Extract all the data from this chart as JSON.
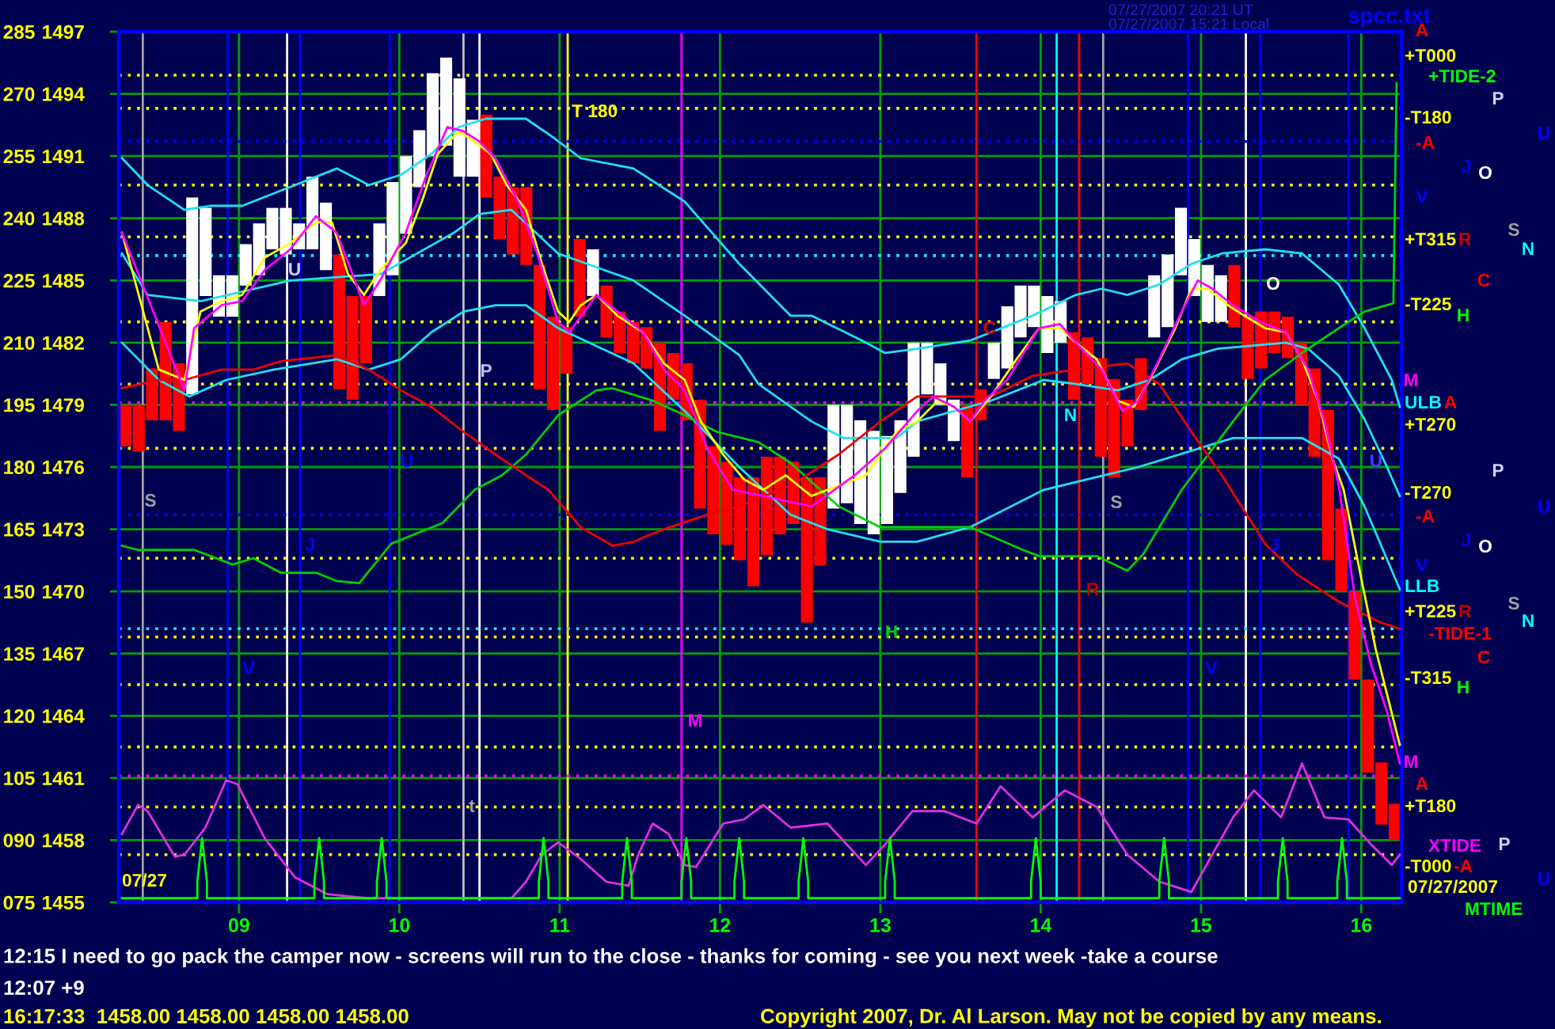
{
  "chart_data": {
    "type": "bar",
    "xlim": [
      8.25,
      16.25
    ],
    "ylim": [
      1455,
      1497
    ],
    "y2lim": [
      75,
      285
    ],
    "xticks": [
      {
        "value": 9,
        "label": "09"
      },
      10,
      11,
      12,
      13,
      14,
      15,
      16
    ],
    "yticks": [
      1455,
      1458,
      1461,
      1464,
      1467,
      1470,
      1473,
      1476,
      1479,
      1482,
      1485,
      1488,
      1491,
      1494,
      1497
    ],
    "y2ticks": [
      {
        "value": 75,
        "label": "075"
      },
      {
        "value": 90,
        "label": "090"
      },
      105,
      120,
      135,
      150,
      165,
      180,
      195,
      210,
      225,
      240,
      255,
      270,
      285
    ],
    "grid": true,
    "series": [
      {
        "x": [
          8.292,
          8.375,
          8.458,
          8.542,
          8.625,
          8.708,
          8.792,
          8.875,
          8.958,
          9.042,
          9.125,
          9.208,
          9.292,
          9.375,
          9.458,
          9.542,
          9.625,
          9.708,
          9.792,
          9.875,
          9.958,
          10.042,
          10.125,
          10.208,
          10.292,
          10.375,
          10.458,
          10.542,
          10.625,
          10.708,
          10.792,
          10.875,
          10.958,
          11.042,
          11.125,
          11.208,
          11.292,
          11.375,
          11.458,
          11.542,
          11.625,
          11.708,
          11.792,
          11.875,
          11.958,
          12.042,
          12.125,
          12.208,
          12.292,
          12.375,
          12.458,
          12.542,
          12.625,
          12.708,
          12.792,
          12.875,
          12.958,
          13.042,
          13.125,
          13.208,
          13.292,
          13.375,
          13.458,
          13.542,
          13.625,
          13.708,
          13.792,
          13.875,
          13.958,
          14.042,
          14.125,
          14.208,
          14.292,
          14.375,
          14.458,
          14.542,
          14.625,
          14.708,
          14.792,
          14.875,
          14.958,
          15.042,
          15.125,
          15.208,
          15.292,
          15.375,
          15.458,
          15.542,
          15.625,
          15.708,
          15.792,
          15.875,
          15.958,
          16.042,
          16.125,
          16.208
        ],
        "base": [
          1477,
          1476.75,
          1478.25,
          1478.25,
          1477.75,
          1479.5,
          1484.25,
          1483.25,
          1483.25,
          1484.75,
          1485.25,
          1486.5,
          1486.25,
          1486.5,
          1486.5,
          1485.5,
          1479.75,
          1479.25,
          1481,
          1484.25,
          1485.25,
          1487.25,
          1489.5,
          1491,
          1491.5,
          1490,
          1490,
          1489,
          1487,
          1486.25,
          1485.75,
          1479.75,
          1478.75,
          1480.5,
          1483.25,
          1484.25,
          1482.25,
          1481.5,
          1481,
          1480.75,
          1477.75,
          1479.25,
          1478.25,
          1474,
          1472.75,
          1472.25,
          1471.5,
          1470.25,
          1471.75,
          1472.75,
          1473.25,
          1468.5,
          1471.25,
          1474,
          1474.25,
          1473.25,
          1472.75,
          1473.25,
          1474.75,
          1476.5,
          1479.5,
          1479,
          1477.25,
          1475.5,
          1478.25,
          1480.25,
          1480.75,
          1482.25,
          1482.75,
          1481.5,
          1482,
          1479.25,
          1480,
          1476.5,
          1475.5,
          1477,
          1478.75,
          1482.25,
          1482.75,
          1485.25,
          1484.25,
          1483,
          1483,
          1482.75,
          1480.25,
          1480.75,
          1481.5,
          1481.25,
          1479,
          1476.5,
          1471.5,
          1470,
          1465.75,
          1461.25,
          1458.75,
          1458
        ],
        "values": [
          2,
          2.25,
          2.5,
          4.75,
          3.25,
          9.5,
          4.25,
          2,
          2,
          2,
          2.5,
          2,
          2.25,
          1.25,
          3.5,
          3.25,
          6.5,
          5,
          3.25,
          3.5,
          4.5,
          3.75,
          2.75,
          4,
          4.25,
          4.75,
          2.75,
          4,
          3,
          3.25,
          3.75,
          6,
          4.5,
          2.25,
          3.75,
          2.25,
          2.5,
          2,
          2,
          2,
          4.25,
          2.25,
          2.75,
          5.25,
          4.25,
          4,
          4,
          5.25,
          4.75,
          3.75,
          3,
          7,
          4.25,
          5,
          4.75,
          5,
          5,
          4.25,
          3.5,
          5.5,
          2.5,
          2,
          2,
          3.5,
          1.5,
          1.75,
          3,
          2.5,
          2,
          2.75,
          2,
          3.25,
          2.25,
          4.75,
          4.75,
          2.25,
          2.5,
          3,
          3.5,
          3.25,
          2.75,
          2.75,
          2.25,
          3,
          3,
          2.75,
          2,
          2,
          3,
          4.25,
          7.25,
          4,
          4.25,
          4.5,
          3,
          1.75
        ],
        "colors": [
          "#ff0000",
          "#ff0000",
          "#ff0000",
          "#ff0000",
          "#ff0000",
          "#ffffff",
          "#ffffff",
          "#ffffff",
          "#ffffff",
          "#ffffff",
          "#ffffff",
          "#ffffff",
          "#ffffff",
          "#ffffff",
          "#ffffff",
          "#ffffff",
          "#ff0000",
          "#ff0000",
          "#ff0000",
          "#ffffff",
          "#ffffff",
          "#ffffff",
          "#ffffff",
          "#ffffff",
          "#ffffff",
          "#ffffff",
          "#ffffff",
          "#ff0000",
          "#ff0000",
          "#ff0000",
          "#ff0000",
          "#ff0000",
          "#ff0000",
          "#ff0000",
          "#ff0000",
          "#ffffff",
          "#ff0000",
          "#ff0000",
          "#ff0000",
          "#ff0000",
          "#ff0000",
          "#ff0000",
          "#ff0000",
          "#ff0000",
          "#ff0000",
          "#ff0000",
          "#ff0000",
          "#ff0000",
          "#ff0000",
          "#ff0000",
          "#ff0000",
          "#ff0000",
          "#ff0000",
          "#ffffff",
          "#ffffff",
          "#ffffff",
          "#ffffff",
          "#ffffff",
          "#ffffff",
          "#ffffff",
          "#ffffff",
          "#ffffff",
          "#ffffff",
          "#ff0000",
          "#ff0000",
          "#ffffff",
          "#ffffff",
          "#ffffff",
          "#ffffff",
          "#ffffff",
          "#ffffff",
          "#ff0000",
          "#ff0000",
          "#ff0000",
          "#ff0000",
          "#ff0000",
          "#ff0000",
          "#ffffff",
          "#ffffff",
          "#ffffff",
          "#ffffff",
          "#ffffff",
          "#ffffff",
          "#ff0000",
          "#ff0000",
          "#ff0000",
          "#ff0000",
          "#ff0000",
          "#ff0000",
          "#ff0000",
          "#ff0000",
          "#ff0000",
          "#ff0000",
          "#ff0000",
          "#ff0000",
          "#ff0000"
        ]
      },
      {
        "type": "line",
        "color": "#20e0f0",
        "x": [
          8.27,
          8.43,
          8.66,
          8.82,
          9.02,
          9.35,
          9.61,
          9.81,
          10.01,
          10.2,
          10.37,
          10.54,
          10.79,
          10.96,
          11.13,
          11.46,
          11.78,
          12.12,
          12.44,
          12.57,
          12.91,
          13.03,
          13.23,
          13.56,
          13.95,
          14.22,
          14.38,
          14.54,
          14.74,
          14.94,
          15.13,
          15.4,
          15.63,
          15.86,
          16.02,
          16.19,
          16.24
        ],
        "values": [
          1490.9,
          1489.6,
          1488.4,
          1488.6,
          1488.6,
          1489.6,
          1490.4,
          1489.6,
          1490.1,
          1491.1,
          1492.4,
          1492.8,
          1492.8,
          1491.9,
          1490.9,
          1490.4,
          1488.8,
          1485.8,
          1483.3,
          1483.3,
          1482.0,
          1481.5,
          1481.7,
          1482.1,
          1483.3,
          1484.3,
          1484.6,
          1484.3,
          1484.8,
          1485.8,
          1486.3,
          1486.5,
          1486.3,
          1484.8,
          1482.7,
          1480.2,
          1478.9
        ]
      },
      {
        "type": "line",
        "color": "#20e0f0",
        "x": [
          8.27,
          8.43,
          8.76,
          9.32,
          9.88,
          10.34,
          10.5,
          10.7,
          10.99,
          11.46,
          11.78,
          12.12,
          12.24,
          12.57,
          12.77,
          13.1,
          13.23,
          13.69,
          14.02,
          14.22,
          14.48,
          14.68,
          14.88,
          15.1,
          15.53,
          15.67,
          15.86,
          16.02,
          16.16,
          16.24
        ],
        "values": [
          1486.3,
          1484.3,
          1484.0,
          1485.0,
          1485.3,
          1487.3,
          1488.2,
          1488.4,
          1486.3,
          1485.0,
          1483.3,
          1481.4,
          1480.0,
          1478.2,
          1477.4,
          1477.4,
          1478.2,
          1479.2,
          1480.2,
          1480.0,
          1479.7,
          1480.2,
          1481.2,
          1481.7,
          1482.0,
          1481.7,
          1480.4,
          1478.3,
          1476.0,
          1474.6
        ]
      },
      {
        "type": "line",
        "color": "#20e0f0",
        "x": [
          8.27,
          8.5,
          8.69,
          8.92,
          9.22,
          9.61,
          9.81,
          10.01,
          10.2,
          10.4,
          10.6,
          10.79,
          10.99,
          11.46,
          11.78,
          12.12,
          12.44,
          12.67,
          13.0,
          13.23,
          13.56,
          14.02,
          14.29,
          14.61,
          15.2,
          15.63,
          15.86,
          16.02,
          16.24
        ],
        "values": [
          1482.0,
          1480.2,
          1479.4,
          1480.2,
          1480.7,
          1481.2,
          1480.7,
          1481.2,
          1482.5,
          1483.5,
          1483.8,
          1483.8,
          1482.7,
          1481.0,
          1478.7,
          1476.0,
          1473.7,
          1473.0,
          1472.4,
          1472.4,
          1473.1,
          1474.9,
          1475.4,
          1476.0,
          1477.4,
          1477.4,
          1476.4,
          1474.1,
          1470.1
        ]
      },
      {
        "type": "line",
        "color": "#00d000",
        "x": [
          8.27,
          8.37,
          8.72,
          8.96,
          9.09,
          9.26,
          9.48,
          9.61,
          9.75,
          9.95,
          10.27,
          10.47,
          10.64,
          10.79,
          10.99,
          11.23,
          11.33,
          11.58,
          11.78,
          11.98,
          12.24,
          12.44,
          12.74,
          13.0,
          13.56,
          13.89,
          13.99,
          14.35,
          14.54,
          14.64,
          14.88,
          15.2,
          15.4,
          15.63,
          15.86,
          16.02,
          16.2,
          16.22
        ],
        "values": [
          1472.2,
          1472.0,
          1472.0,
          1471.3,
          1471.6,
          1470.9,
          1470.9,
          1470.5,
          1470.4,
          1472.3,
          1473.3,
          1474.9,
          1475.6,
          1476.6,
          1478.5,
          1479.7,
          1479.8,
          1479.2,
          1478.5,
          1477.7,
          1477.2,
          1476.2,
          1474.1,
          1473.1,
          1473.1,
          1472.0,
          1471.7,
          1471.7,
          1471.0,
          1471.8,
          1474.9,
          1478.2,
          1480.2,
          1481.5,
          1482.7,
          1483.5,
          1483.9,
          1494.5
        ]
      },
      {
        "type": "line",
        "color": "#f00000",
        "x": [
          8.27,
          8.5,
          8.66,
          8.89,
          9.09,
          9.26,
          9.61,
          9.81,
          10.01,
          10.2,
          10.4,
          10.6,
          10.79,
          10.93,
          11.13,
          11.33,
          11.46,
          11.65,
          11.88,
          12.12,
          12.44,
          12.74,
          13.0,
          13.23,
          13.69,
          13.95,
          14.22,
          14.54,
          14.74,
          14.94,
          15.13,
          15.4,
          15.6,
          15.86,
          16.12,
          16.24
        ],
        "values": [
          1479.8,
          1480.2,
          1480.2,
          1480.7,
          1480.7,
          1481.1,
          1481.4,
          1480.7,
          1479.7,
          1478.9,
          1477.7,
          1476.6,
          1475.6,
          1474.9,
          1473.1,
          1472.2,
          1472.4,
          1473.0,
          1473.6,
          1474.1,
          1475.1,
          1476.6,
          1478.2,
          1479.4,
          1479.4,
          1480.4,
          1480.7,
          1481.0,
          1480.0,
          1477.7,
          1475.6,
          1472.3,
          1470.8,
          1469.5,
          1468.5,
          1468.2
        ]
      },
      {
        "type": "line",
        "color": "#ffff00",
        "x": [
          8.27,
          8.5,
          8.66,
          8.76,
          8.89,
          9.02,
          9.16,
          9.32,
          9.48,
          9.58,
          9.68,
          9.78,
          9.88,
          10.04,
          10.14,
          10.24,
          10.37,
          10.47,
          10.57,
          10.67,
          10.79,
          10.89,
          10.99,
          11.06,
          11.13,
          11.23,
          11.36,
          11.52,
          11.65,
          11.78,
          11.88,
          12.02,
          12.15,
          12.27,
          12.41,
          12.57,
          12.74,
          12.91,
          13.1,
          13.23,
          13.36,
          13.46,
          13.56,
          13.69,
          13.85,
          13.99,
          14.12,
          14.22,
          14.35,
          14.48,
          14.58,
          14.68,
          14.84,
          14.94,
          15.04,
          15.17,
          15.27,
          15.4,
          15.53,
          15.63,
          15.73,
          15.82,
          15.89,
          15.99,
          16.09,
          16.24
        ],
        "values": [
          1487.3,
          1480.7,
          1480.2,
          1483.5,
          1484.0,
          1484.3,
          1486.1,
          1486.8,
          1487.8,
          1487.8,
          1485.3,
          1484.3,
          1485.5,
          1486.8,
          1488.8,
          1491.1,
          1492.2,
          1491.7,
          1491.1,
          1489.6,
          1488.4,
          1485.8,
          1483.5,
          1483.0,
          1483.8,
          1484.3,
          1483.3,
          1482.5,
          1481.0,
          1480.2,
          1478.2,
          1476.6,
          1475.4,
          1474.9,
          1475.6,
          1474.6,
          1475.1,
          1475.6,
          1477.7,
          1478.2,
          1479.2,
          1478.9,
          1478.2,
          1479.4,
          1481.2,
          1482.7,
          1482.7,
          1482.0,
          1481.2,
          1479.2,
          1478.9,
          1480.2,
          1482.7,
          1484.6,
          1484.6,
          1483.8,
          1483.3,
          1482.7,
          1482.5,
          1481.2,
          1479.2,
          1476.4,
          1474.9,
          1471.0,
          1467.2,
          1462.6
        ]
      },
      {
        "type": "line",
        "color": "#ff00ff",
        "x": [
          8.27,
          8.66,
          8.72,
          8.89,
          9.02,
          9.16,
          9.32,
          9.48,
          9.61,
          9.78,
          9.88,
          10.04,
          10.17,
          10.3,
          10.4,
          10.5,
          10.6,
          10.74,
          10.86,
          10.99,
          11.06,
          11.23,
          11.36,
          11.52,
          11.65,
          11.78,
          11.92,
          12.08,
          12.27,
          12.57,
          12.84,
          13.03,
          13.23,
          13.33,
          13.46,
          13.56,
          13.65,
          13.79,
          13.99,
          14.12,
          14.22,
          14.38,
          14.51,
          14.61,
          14.74,
          14.88,
          14.98,
          15.07,
          15.2,
          15.37,
          15.53,
          15.67,
          15.77,
          15.86,
          15.96,
          16.06,
          16.16,
          16.24
        ],
        "values": [
          1487.3,
          1479.7,
          1482.7,
          1483.8,
          1484.0,
          1485.5,
          1486.5,
          1488.1,
          1487.3,
          1483.8,
          1485.0,
          1487.3,
          1490.1,
          1492.4,
          1492.2,
          1491.7,
          1490.9,
          1488.8,
          1486.3,
          1483.0,
          1482.5,
          1484.3,
          1483.5,
          1482.5,
          1480.7,
          1479.7,
          1476.9,
          1474.9,
          1474.6,
          1474.1,
          1475.6,
          1476.9,
          1478.7,
          1479.4,
          1478.9,
          1478.2,
          1479.2,
          1480.2,
          1482.7,
          1482.9,
          1482.0,
          1480.7,
          1478.7,
          1479.2,
          1481.2,
          1483.5,
          1485.0,
          1484.6,
          1483.8,
          1483.0,
          1482.5,
          1480.7,
          1478.2,
          1475.1,
          1469.7,
          1466.5,
          1464.2,
          1461.7
        ]
      },
      {
        "type": "line",
        "color": "#e030e0",
        "x": [
          8.27,
          8.37,
          8.43,
          8.6,
          8.66,
          8.79,
          8.92,
          8.99,
          9.16,
          9.35,
          9.55,
          9.81,
          10.7,
          10.79,
          10.89,
          10.99,
          11.13,
          11.29,
          11.43,
          11.49,
          11.58,
          11.68,
          11.78,
          11.85,
          12.02,
          12.15,
          12.27,
          12.41,
          12.44,
          12.67,
          12.91,
          13.03,
          13.2,
          13.4,
          13.6,
          13.75,
          13.95,
          14.15,
          14.35,
          14.54,
          14.74,
          14.94,
          15.07,
          15.2,
          15.33,
          15.5,
          15.63,
          15.77,
          15.92,
          16.06,
          16.19,
          16.24
        ],
        "values": [
          1458.3,
          1459.7,
          1459.4,
          1457.2,
          1457.3,
          1458.6,
          1460.9,
          1460.7,
          1458.1,
          1456.2,
          1455.4,
          1455.2,
          1455.2,
          1456.0,
          1457.3,
          1457.9,
          1457.1,
          1456.0,
          1455.8,
          1457.3,
          1458.8,
          1458.3,
          1456.8,
          1456.7,
          1458.8,
          1459.0,
          1459.7,
          1458.8,
          1458.6,
          1458.8,
          1456.8,
          1457.8,
          1459.4,
          1459.4,
          1458.8,
          1460.6,
          1459.1,
          1460.4,
          1459.6,
          1457.3,
          1456.0,
          1455.5,
          1457.3,
          1459.1,
          1460.4,
          1459.1,
          1461.7,
          1459.1,
          1459.0,
          1457.8,
          1456.8,
          1457.3
        ]
      },
      {
        "type": "line",
        "color": "#00ff00",
        "x": [
          8.27,
          8.74,
          8.74,
          8.77,
          8.8,
          8.8,
          9.47,
          9.47,
          9.5,
          9.53,
          9.53,
          9.86,
          9.86,
          9.89,
          9.92,
          9.92,
          10.87,
          10.87,
          10.9,
          10.93,
          10.93,
          11.39,
          11.39,
          11.42,
          11.45,
          11.45,
          11.76,
          11.76,
          11.79,
          11.82,
          11.82,
          12.09,
          12.09,
          12.12,
          12.15,
          12.15,
          12.49,
          12.49,
          12.52,
          12.55,
          12.55,
          13.03,
          13.03,
          13.06,
          13.09,
          13.09,
          13.94,
          13.94,
          13.97,
          14.0,
          14.0,
          14.74,
          14.74,
          14.77,
          14.8,
          14.8,
          15.48,
          15.48,
          15.51,
          15.54,
          15.54,
          15.85,
          15.85,
          15.88,
          15.91,
          15.91,
          16.24
        ],
        "values": [
          1455.2,
          1455.2,
          1456.0,
          1458.1,
          1456.0,
          1455.2,
          1455.2,
          1456.0,
          1458.1,
          1456.0,
          1455.2,
          1455.2,
          1456.0,
          1458.1,
          1456.0,
          1455.2,
          1455.2,
          1456.0,
          1458.1,
          1456.0,
          1455.2,
          1455.2,
          1456.0,
          1458.1,
          1456.0,
          1455.2,
          1455.2,
          1456.0,
          1458.1,
          1456.0,
          1455.2,
          1455.2,
          1456.0,
          1458.1,
          1456.0,
          1455.2,
          1455.2,
          1456.0,
          1458.1,
          1456.0,
          1455.2,
          1455.2,
          1456.0,
          1458.1,
          1456.0,
          1455.2,
          1455.2,
          1456.0,
          1458.1,
          1456.0,
          1455.2,
          1455.2,
          1456.0,
          1458.1,
          1456.0,
          1455.2,
          1455.2,
          1456.0,
          1458.1,
          1456.0,
          1455.2,
          1455.2,
          1456.0,
          1458.1,
          1456.0,
          1455.2,
          1455.2
        ]
      }
    ],
    "ref_lines": [
      {
        "axis": "x",
        "value": 8.4,
        "color": "#a0a0a0"
      },
      {
        "axis": "x",
        "value": 8.93,
        "color": "#0000ff"
      },
      {
        "axis": "x",
        "value": 9.3,
        "color": "#ffffff"
      },
      {
        "axis": "x",
        "value": 9.38,
        "color": "#0000ff"
      },
      {
        "axis": "x",
        "value": 9.94,
        "color": "#0000ff"
      },
      {
        "axis": "x",
        "value": 10.4,
        "color": "#c0c0c0"
      },
      {
        "axis": "x",
        "value": 10.5,
        "color": "#ffffff"
      },
      {
        "axis": "x",
        "value": 11.05,
        "color": "#ffff00"
      },
      {
        "axis": "x",
        "value": 11.76,
        "color": "#ff00ff"
      },
      {
        "axis": "x",
        "value": 13.6,
        "color": "#ff0000"
      },
      {
        "axis": "x",
        "value": 14.1,
        "color": "#00ffff"
      },
      {
        "axis": "x",
        "value": 14.24,
        "color": "#ff0000"
      },
      {
        "axis": "x",
        "value": 14.39,
        "color": "#a0a0a0"
      },
      {
        "axis": "x",
        "value": 14.92,
        "color": "#0000ff"
      },
      {
        "axis": "x",
        "value": 15.28,
        "color": "#ffffff"
      },
      {
        "axis": "x",
        "value": 15.37,
        "color": "#0000ff"
      },
      {
        "axis": "x",
        "value": 15.92,
        "color": "#0000ff"
      },
      {
        "axis": "y",
        "value": 1491.7,
        "color": "#0000ff",
        "line_style": "dotted"
      },
      {
        "axis": "y",
        "value": 1486.2,
        "color": "#00ffff",
        "line_style": "dotted"
      },
      {
        "axis": "y",
        "value": 1479.1,
        "color": "#ff00ff",
        "line_style": "dotted"
      },
      {
        "axis": "y",
        "value": 1473.7,
        "color": "#0000ff",
        "line_style": "dotted"
      },
      {
        "axis": "y",
        "value": 1468.2,
        "color": "#00ffff",
        "line_style": "dotted"
      },
      {
        "axis": "y",
        "value": 1461.1,
        "color": "#ff00ff",
        "line_style": "dotted"
      },
      {
        "axis": "y",
        "value": 1494.9,
        "color": "#ffff00",
        "line_style": "dotted"
      },
      {
        "axis": "y",
        "value": 1493.3,
        "color": "#ffff00",
        "line_style": "dotted"
      },
      {
        "axis": "y",
        "value": 1489.6,
        "color": "#ffff00",
        "line_style": "dotted"
      },
      {
        "axis": "y",
        "value": 1487.1,
        "color": "#ffff00",
        "line_style": "dotted"
      },
      {
        "axis": "y",
        "value": 1483.0,
        "color": "#ffff00",
        "line_style": "dotted"
      },
      {
        "axis": "y",
        "value": 1480.0,
        "color": "#ffff00",
        "line_style": "dotted"
      },
      {
        "axis": "y",
        "value": 1476.9,
        "color": "#ffff00",
        "line_style": "dotted"
      },
      {
        "axis": "y",
        "value": 1471.6,
        "color": "#ffff00",
        "line_style": "dotted"
      },
      {
        "axis": "y",
        "value": 1467.8,
        "color": "#ffff00",
        "line_style": "dotted"
      },
      {
        "axis": "y",
        "value": 1465.5,
        "color": "#ffff00",
        "line_style": "dotted"
      },
      {
        "axis": "y",
        "value": 1462.5,
        "color": "#ffff00",
        "line_style": "dotted"
      },
      {
        "axis": "y",
        "value": 1459.6,
        "color": "#ffff00",
        "line_style": "dotted"
      },
      {
        "axis": "y",
        "value": 1457.3,
        "color": "#ffff00",
        "line_style": "dotted"
      }
    ],
    "annotations": [
      "07/27/2007 20:21 UT",
      "07/27/2007 15:21 Local",
      "spcc.txt",
      "T 180",
      "U",
      "P",
      "S",
      "U",
      "J",
      "V",
      "t",
      "M",
      "C",
      "N",
      "O",
      "S",
      "H",
      "R",
      "V",
      "J",
      "U",
      "07/27",
      "A",
      "+T000",
      "+TIDE-2",
      "P",
      "-T180",
      "-A",
      "U",
      "J",
      "O",
      "V",
      "+T315",
      "R",
      "S",
      "N",
      "C",
      "-T225",
      "H",
      "M",
      "ULB",
      "A",
      "+T270",
      "P",
      "-T270",
      "-A",
      "U",
      "J",
      "O",
      "V",
      "LLB",
      "S",
      "+T225",
      "R",
      "-TIDE-1",
      "N",
      "C",
      "-T315",
      "H",
      "M",
      "A",
      "+T180",
      "XTIDE",
      "P",
      "-T000",
      "-A",
      "U",
      "07/27/2007",
      "MTIME",
      "12:15 I need to go pack the camper now - screens will run to the close - thanks for coming - see you next week -take a course",
      "12:07 +9",
      "16:17:33  1458.00 1458.00 1458.00 1458.00",
      "Copyright 2007, Dr. Al Larson. May not be copied by any means."
    ]
  }
}
